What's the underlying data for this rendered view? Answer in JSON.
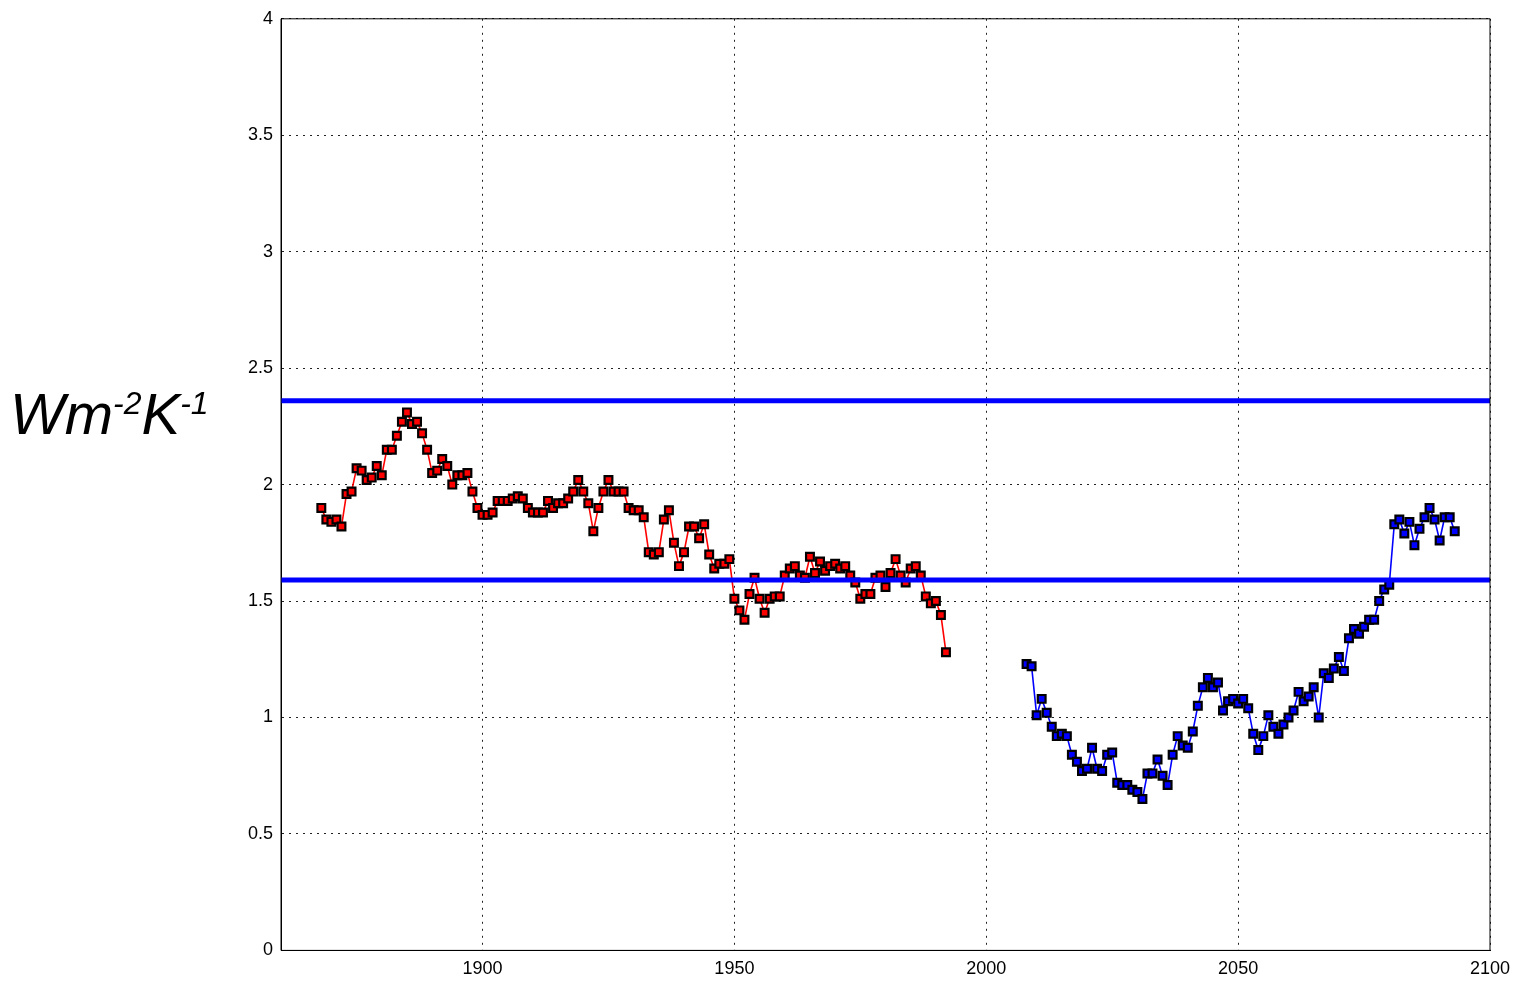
{
  "chart_data": {
    "type": "line",
    "ylabel": "Wm$^{-2}$K$^{-1}$",
    "xlim": [
      1860,
      2100
    ],
    "xticks": [
      1900,
      1950,
      2000,
      2050,
      2100
    ],
    "ylim": [
      0,
      4
    ],
    "yticks": [
      0,
      0.5,
      1,
      1.5,
      2,
      2.5,
      3,
      3.5,
      4
    ],
    "grid": true,
    "legend": false,
    "marker": "square",
    "line_style": "solid",
    "ref_lines": [
      {
        "axis": "y",
        "value": 2.36,
        "color": "#0000ff"
      },
      {
        "axis": "y",
        "value": 1.59,
        "color": "#0000ff"
      }
    ],
    "series": [
      {
        "color": "#ff0000",
        "x": [
          1868,
          1869,
          1870,
          1871,
          1872,
          1873,
          1874,
          1875,
          1876,
          1877,
          1878,
          1879,
          1880,
          1881,
          1882,
          1883,
          1884,
          1885,
          1886,
          1887,
          1888,
          1889,
          1890,
          1891,
          1892,
          1893,
          1894,
          1895,
          1896,
          1897,
          1898,
          1899,
          1900,
          1901,
          1902,
          1903,
          1904,
          1905,
          1906,
          1907,
          1908,
          1909,
          1910,
          1911,
          1912,
          1913,
          1914,
          1915,
          1916,
          1917,
          1918,
          1919,
          1920,
          1921,
          1922,
          1923,
          1924,
          1925,
          1926,
          1927,
          1928,
          1929,
          1930,
          1931,
          1932,
          1933,
          1934,
          1935,
          1936,
          1937,
          1938,
          1939,
          1940,
          1941,
          1942,
          1943,
          1944,
          1945,
          1946,
          1947,
          1948,
          1949,
          1950,
          1951,
          1952,
          1953,
          1954,
          1955,
          1956,
          1957,
          1958,
          1959,
          1960,
          1961,
          1962,
          1963,
          1964,
          1965,
          1966,
          1967,
          1968,
          1969,
          1970,
          1971,
          1972,
          1973,
          1974,
          1975,
          1976,
          1977,
          1978,
          1979,
          1980,
          1981,
          1982,
          1983,
          1984,
          1985,
          1986,
          1987,
          1988,
          1989,
          1990,
          1991,
          1992
        ],
        "values": [
          1.9,
          1.85,
          1.84,
          1.85,
          1.82,
          1.96,
          1.97,
          2.07,
          2.06,
          2.02,
          2.03,
          2.08,
          2.04,
          2.15,
          2.15,
          2.21,
          2.27,
          2.31,
          2.26,
          2.27,
          2.22,
          2.15,
          2.05,
          2.06,
          2.11,
          2.08,
          2.0,
          2.04,
          2.04,
          2.05,
          1.97,
          1.9,
          1.87,
          1.87,
          1.88,
          1.93,
          1.93,
          1.93,
          1.94,
          1.95,
          1.94,
          1.9,
          1.88,
          1.88,
          1.88,
          1.93,
          1.9,
          1.92,
          1.92,
          1.94,
          1.97,
          2.02,
          1.97,
          1.92,
          1.8,
          1.9,
          1.97,
          2.02,
          1.97,
          1.97,
          1.97,
          1.9,
          1.89,
          1.89,
          1.86,
          1.71,
          1.7,
          1.71,
          1.85,
          1.89,
          1.75,
          1.65,
          1.71,
          1.82,
          1.82,
          1.77,
          1.83,
          1.7,
          1.64,
          1.66,
          1.66,
          1.68,
          1.51,
          1.46,
          1.42,
          1.53,
          1.6,
          1.51,
          1.45,
          1.51,
          1.52,
          1.52,
          1.61,
          1.64,
          1.65,
          1.61,
          1.6,
          1.69,
          1.62,
          1.67,
          1.63,
          1.65,
          1.66,
          1.64,
          1.65,
          1.61,
          1.58,
          1.51,
          1.53,
          1.53,
          1.6,
          1.61,
          1.56,
          1.62,
          1.68,
          1.61,
          1.58,
          1.64,
          1.65,
          1.61,
          1.52,
          1.49,
          1.5,
          1.44,
          1.28
        ]
      },
      {
        "color": "#0000ff",
        "x": [
          2008,
          2009,
          2010,
          2011,
          2012,
          2013,
          2014,
          2015,
          2016,
          2017,
          2018,
          2019,
          2020,
          2021,
          2022,
          2023,
          2024,
          2025,
          2026,
          2027,
          2028,
          2029,
          2030,
          2031,
          2032,
          2033,
          2034,
          2035,
          2036,
          2037,
          2038,
          2039,
          2040,
          2041,
          2042,
          2043,
          2044,
          2045,
          2046,
          2047,
          2048,
          2049,
          2050,
          2051,
          2052,
          2053,
          2054,
          2055,
          2056,
          2057,
          2058,
          2059,
          2060,
          2061,
          2062,
          2063,
          2064,
          2065,
          2066,
          2067,
          2068,
          2069,
          2070,
          2071,
          2072,
          2073,
          2074,
          2075,
          2076,
          2077,
          2078,
          2079,
          2080,
          2081,
          2082,
          2083,
          2084,
          2085,
          2086,
          2087,
          2088,
          2089,
          2090,
          2091,
          2092,
          2093
        ],
        "values": [
          1.23,
          1.22,
          1.01,
          1.08,
          1.02,
          0.96,
          0.92,
          0.93,
          0.92,
          0.84,
          0.81,
          0.77,
          0.78,
          0.87,
          0.78,
          0.77,
          0.84,
          0.85,
          0.72,
          0.71,
          0.71,
          0.69,
          0.68,
          0.65,
          0.76,
          0.76,
          0.82,
          0.75,
          0.71,
          0.84,
          0.92,
          0.88,
          0.87,
          0.94,
          1.05,
          1.13,
          1.17,
          1.13,
          1.15,
          1.03,
          1.07,
          1.08,
          1.06,
          1.08,
          1.04,
          0.93,
          0.86,
          0.92,
          1.01,
          0.96,
          0.93,
          0.97,
          1.0,
          1.03,
          1.11,
          1.07,
          1.09,
          1.13,
          1.0,
          1.19,
          1.17,
          1.21,
          1.26,
          1.2,
          1.34,
          1.38,
          1.36,
          1.39,
          1.42,
          1.42,
          1.5,
          1.55,
          1.57,
          1.83,
          1.85,
          1.79,
          1.84,
          1.74,
          1.81,
          1.86,
          1.9,
          1.85,
          1.76,
          1.86,
          1.86,
          1.8
        ]
      }
    ]
  }
}
